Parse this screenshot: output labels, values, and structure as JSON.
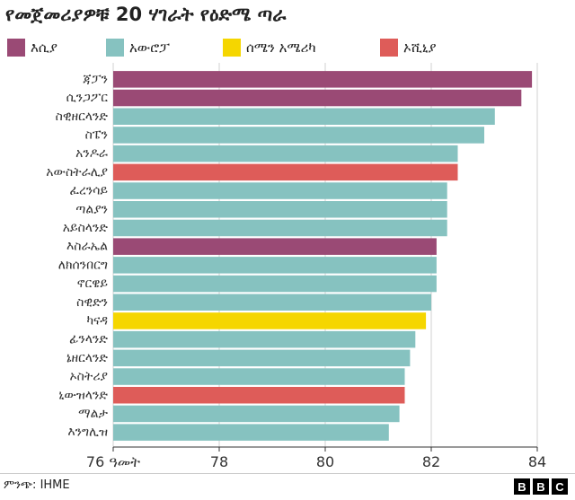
{
  "title": "የመጀመሪያዎቹ 20 ሃገራት የዕድሜ ጣራ",
  "source": "ምንጭ: IHME",
  "logo": [
    "B",
    "B",
    "C"
  ],
  "colors": {
    "asia": "#9a4a75",
    "europe": "#86c2c0",
    "north_america": "#f5d600",
    "oceania": "#de5c59",
    "grid": "#d0d0d0",
    "axis": "#333333"
  },
  "legend": [
    {
      "key": "asia",
      "label": "እሲያ"
    },
    {
      "key": "europe",
      "label": "አውሮፓ"
    },
    {
      "key": "north_america",
      "label": "ሰሜን አሜሪካ"
    },
    {
      "key": "oceania",
      "label": "ኦሺኒያ"
    }
  ],
  "chart_data": {
    "type": "bar",
    "orientation": "horizontal",
    "title": "የመጀመሪያዎቹ 20 ሃገራት የዕድሜ ጣራ",
    "xlim": [
      76,
      84
    ],
    "xticks": [
      76,
      78,
      80,
      82,
      84
    ],
    "xtick_labels": [
      "76 ዓመት",
      "78",
      "80",
      "82",
      "84"
    ],
    "grid": true,
    "legend_position": "top",
    "categories": [
      "ጃፓን",
      "ሲንጋፖር",
      "ስዊዘርላንድ",
      "ስፔን",
      "አንዶራ",
      "አውስትራሊያ",
      "ፈረንሳይ",
      "ጣልያን",
      "አይስላንድ",
      "እስራኤል",
      "ለክሰንበርግ",
      "ኖርዌይ",
      "ስዊድን",
      "ካናዳ",
      "ፊንላንድ",
      "ኔዘርላንድ",
      "ኦስትሪያ",
      "ኒውዝላንድ",
      "ማልታ",
      "እንግሊዝ"
    ],
    "values": [
      83.9,
      83.7,
      83.2,
      83.0,
      82.5,
      82.5,
      82.3,
      82.3,
      82.3,
      82.1,
      82.1,
      82.1,
      82.0,
      81.9,
      81.7,
      81.6,
      81.5,
      81.5,
      81.4,
      81.2
    ],
    "regions": [
      "asia",
      "asia",
      "europe",
      "europe",
      "europe",
      "oceania",
      "europe",
      "europe",
      "europe",
      "asia",
      "europe",
      "europe",
      "europe",
      "north_america",
      "europe",
      "europe",
      "europe",
      "oceania",
      "europe",
      "europe"
    ]
  }
}
